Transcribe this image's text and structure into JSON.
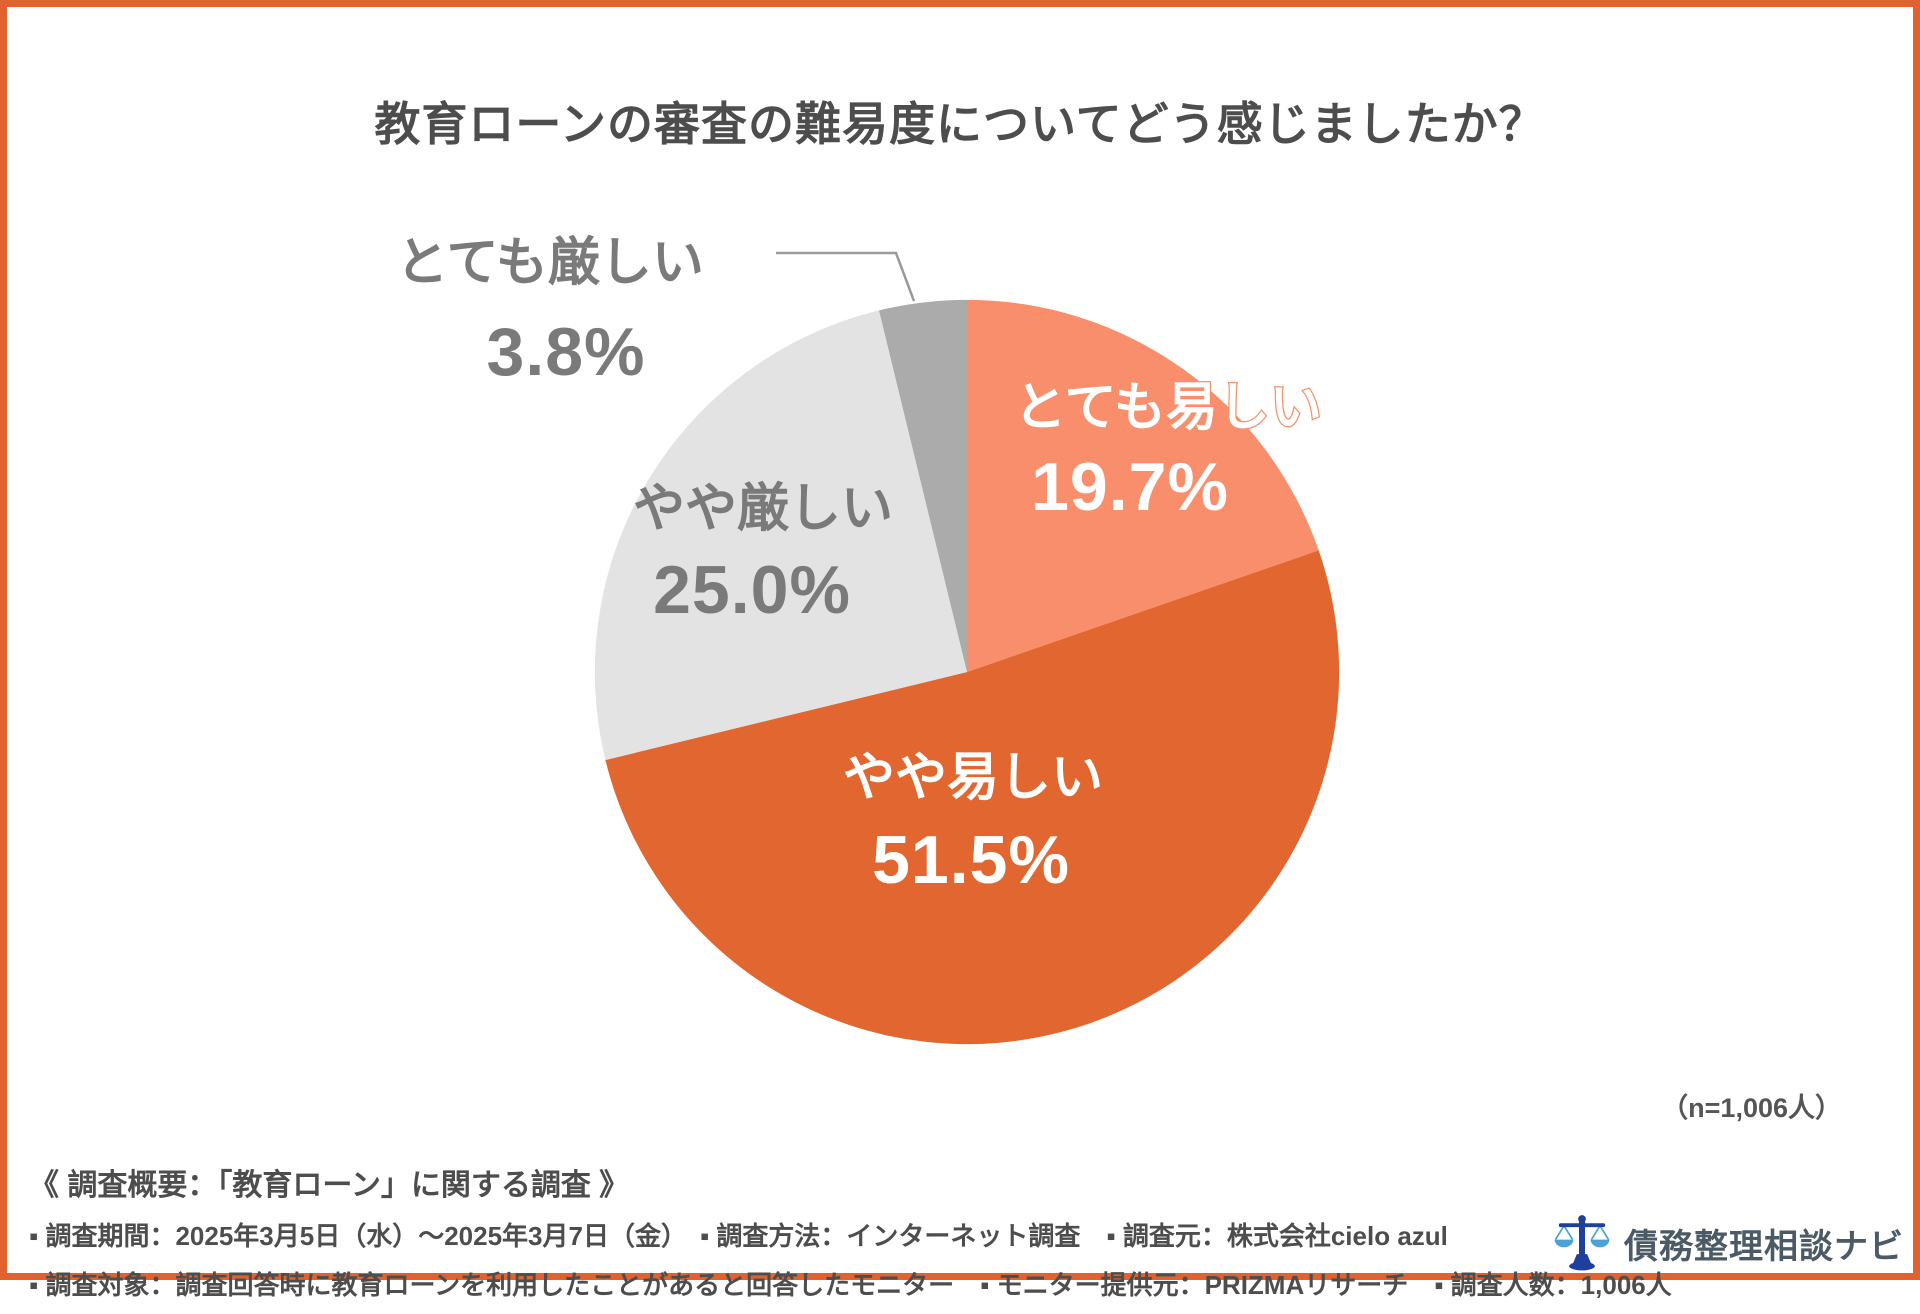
{
  "title": "教育ローンの審査の難易度についてどう感じましたか？",
  "n_label": "（n=1,006人）",
  "chart_data": {
    "type": "pie",
    "title": "教育ローンの審査の難易度についてどう感じましたか？",
    "sample_label": "（n=1,006人）",
    "start_angle_deg": 0,
    "direction": "clockwise",
    "legend_position": "on-slice",
    "slices": [
      {
        "label": "とても易しい",
        "value": 19.7,
        "pct_text": "19.7%",
        "color": "#F98E6C",
        "text_color": "#ffffff"
      },
      {
        "label": "やや易しい",
        "value": 51.5,
        "pct_text": "51.5%",
        "color": "#E1662F",
        "text_color": "#ffffff"
      },
      {
        "label": "やや厳しい",
        "value": 25.0,
        "pct_text": "25.0%",
        "color": "#E3E3E3",
        "text_color": "#7a7a7a"
      },
      {
        "label": "とても厳しい",
        "value": 3.8,
        "pct_text": "3.8%",
        "color": "#ABABAB",
        "text_color": "#7a7a7a"
      }
    ]
  },
  "survey": {
    "heading": "《 調査概要：「教育ローン」に関する調査 》",
    "line2": "▪ 調査期間：2025年3月5日（水）～2025年3月7日（金）　▪ 調査方法：インターネット調査　▪ 調査元：株式会社cielo azul",
    "line3": "▪ 調査対象：調査回答時に教育ローンを利用したことがあると回答したモニター　▪ モニター提供元：PRIZMAリサーチ　▪ 調査人数：1,006人"
  },
  "logo": {
    "text": "債務整理相談ナビ",
    "icon": "scales-of-justice-icon",
    "icon_dark_blue": "#1e3f9e",
    "icon_light_blue": "#4aa3d6"
  },
  "colors": {
    "frame_border": "#E2622F",
    "title_text": "#4d4d4d",
    "outside_label_text": "#7a7a7a",
    "leader_line": "#9a9a9a"
  }
}
